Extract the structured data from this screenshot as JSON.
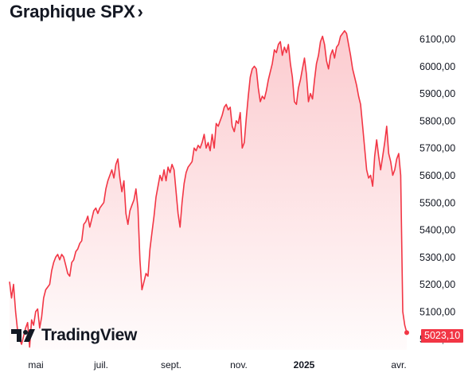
{
  "header": {
    "title": "Graphique SPX",
    "chevron": "›"
  },
  "branding": {
    "logo_icon": "tradingview-logo-icon",
    "logo_text": "TradingView"
  },
  "last_price": {
    "label": "5023,10",
    "color": "#f23645"
  },
  "chart_data": {
    "type": "area",
    "title": "Graphique SPX",
    "xlabel": "",
    "ylabel": "",
    "x_ticks": [
      "mai",
      "juil.",
      "sept.",
      "nov.",
      "2025",
      "avr."
    ],
    "y_ticks": [
      "5100,00",
      "5200,00",
      "5300,00",
      "5400,00",
      "5500,00",
      "5600,00",
      "5700,00",
      "5800,00",
      "5900,00",
      "6000,00",
      "6100,00"
    ],
    "y_partial_tick": "5000,00",
    "ylim": [
      4960,
      6170
    ],
    "grid": false,
    "line_color": "#f23645",
    "fill_color": "#f23645",
    "series": [
      {
        "values": [
          5210,
          5150,
          5200,
          5100,
          5030,
          5000,
          4980,
          5010,
          5040,
          5060,
          4970,
          5070,
          5050,
          5100,
          5110,
          5040,
          5080,
          5150,
          5180,
          5190,
          5200,
          5250,
          5280,
          5300,
          5310,
          5290,
          5310,
          5300,
          5270,
          5240,
          5230,
          5280,
          5290,
          5320,
          5330,
          5350,
          5360,
          5420,
          5430,
          5450,
          5410,
          5440,
          5470,
          5480,
          5460,
          5480,
          5490,
          5500,
          5550,
          5580,
          5600,
          5620,
          5590,
          5640,
          5660,
          5590,
          5540,
          5580,
          5460,
          5420,
          5470,
          5490,
          5510,
          5550,
          5480,
          5290,
          5180,
          5210,
          5240,
          5230,
          5330,
          5390,
          5450,
          5520,
          5560,
          5600,
          5580,
          5620,
          5580,
          5630,
          5610,
          5640,
          5620,
          5540,
          5460,
          5410,
          5500,
          5570,
          5610,
          5630,
          5640,
          5650,
          5700,
          5690,
          5710,
          5700,
          5720,
          5750,
          5700,
          5720,
          5690,
          5750,
          5700,
          5790,
          5780,
          5800,
          5820,
          5850,
          5860,
          5840,
          5850,
          5780,
          5760,
          5800,
          5790,
          5830,
          5700,
          5720,
          5810,
          5890,
          5960,
          5990,
          6000,
          5990,
          5920,
          5870,
          5890,
          5880,
          5910,
          5950,
          5980,
          6010,
          6060,
          6050,
          6080,
          6090,
          6040,
          6070,
          6050,
          6080,
          6010,
          5960,
          5870,
          5860,
          5920,
          5950,
          5990,
          6030,
          5970,
          5870,
          5900,
          5880,
          5950,
          6010,
          6040,
          6090,
          6110,
          6080,
          6020,
          5990,
          6040,
          6060,
          6030,
          6070,
          6080,
          6110,
          6120,
          6130,
          6120,
          6080,
          6040,
          5990,
          5960,
          5930,
          5890,
          5860,
          5780,
          5700,
          5620,
          5590,
          5600,
          5560,
          5670,
          5730,
          5670,
          5620,
          5670,
          5720,
          5780,
          5680,
          5650,
          5600,
          5620,
          5660,
          5680,
          5600,
          5100,
          5050,
          5023
        ]
      }
    ]
  }
}
